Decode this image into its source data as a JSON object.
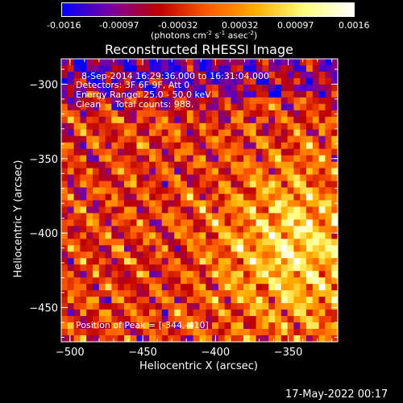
{
  "colorbar": {
    "tick_labels": [
      "-0.0016",
      "-0.00097",
      "-0.00032",
      "0.00032",
      "0.00097",
      "0.0016"
    ],
    "unit_label_main": "(photons cm",
    "unit_label_exp1": "-2",
    "unit_label_mid": " s",
    "unit_label_exp2": "-1",
    "unit_label_mid2": " asec",
    "unit_label_exp3": "-2",
    "unit_label_end": ")",
    "colors": [
      "#0000ff",
      "#7a00a0",
      "#c00000",
      "#ff5a00",
      "#ffb000",
      "#ffff80",
      "#ffffff"
    ]
  },
  "chart_data": {
    "type": "heatmap",
    "title": "Reconstructed RHESSI Image",
    "xlabel": "Heliocentric X (arcsec)",
    "ylabel": "Heliocentric Y (arcsec)",
    "xlim": [
      -506,
      -316
    ],
    "ylim": [
      -473,
      -283
    ],
    "x_ticks": [
      -500,
      -450,
      -400,
      -350
    ],
    "y_ticks": [
      -300,
      -350,
      -400,
      -450
    ],
    "annotations": [
      "8-Sep-2014 16:29:36.000 to 16:31:04.000",
      "Detectors: 3F 6F 9F, Att 0",
      "Energy Range: 25.0 - 50.0 keV",
      "Clean     Total counts: 988."
    ],
    "peak_label": "Position of Peak = [-344,-410]",
    "peak": [
      -344,
      -410
    ]
  },
  "footer": {
    "timestamp": "17-May-2022 00:17"
  }
}
